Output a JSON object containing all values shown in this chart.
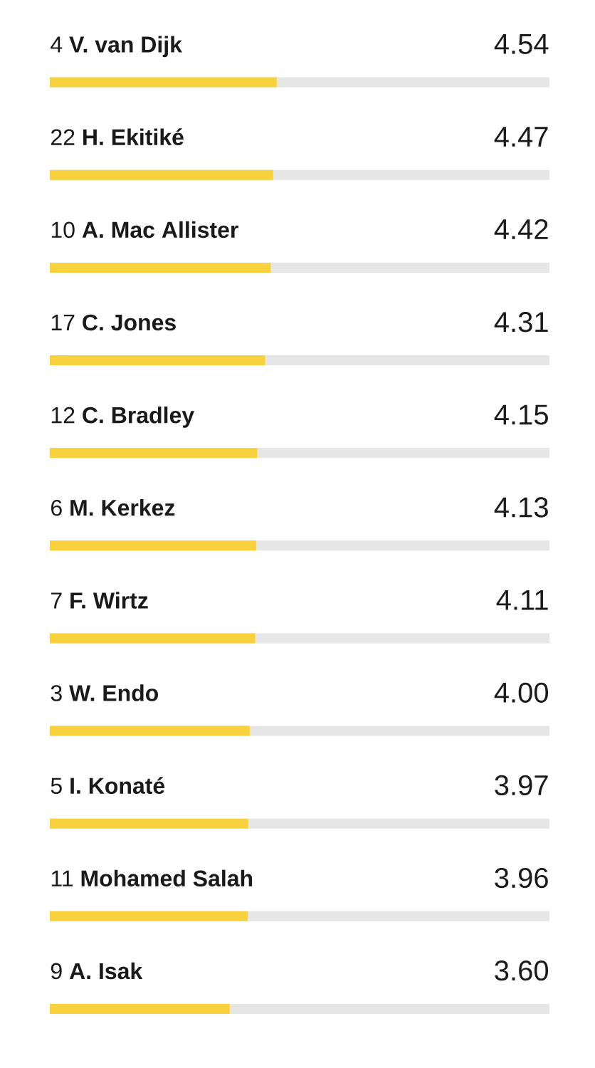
{
  "chart_data": {
    "type": "bar",
    "orientation": "horizontal",
    "categories": [
      "4 **V. van Dijk**",
      "22 **H. Ekitiké**",
      "10 **A. Mac Allister**",
      "17 **C. Jones**",
      "12 **C. Bradley**",
      "6 **M. Kerkez**",
      "7 **F. Wirtz**",
      "3 **W. Endo**",
      "5 **I. Konaté**",
      "11 **Mohamed Salah**",
      "9 **A. Isak**"
    ],
    "values": [
      4.54,
      4.47,
      4.42,
      4.31,
      4.15,
      4.13,
      4.11,
      4.0,
      3.97,
      3.96,
      3.6
    ],
    "value_labels": [
      "4.54",
      "4.47",
      "4.42",
      "4.31",
      "4.15",
      "4.13",
      "4.11",
      "4.00",
      "3.97",
      "3.96",
      "3.60"
    ],
    "color": "#f7d23e",
    "xlim": [
      0,
      10
    ]
  }
}
